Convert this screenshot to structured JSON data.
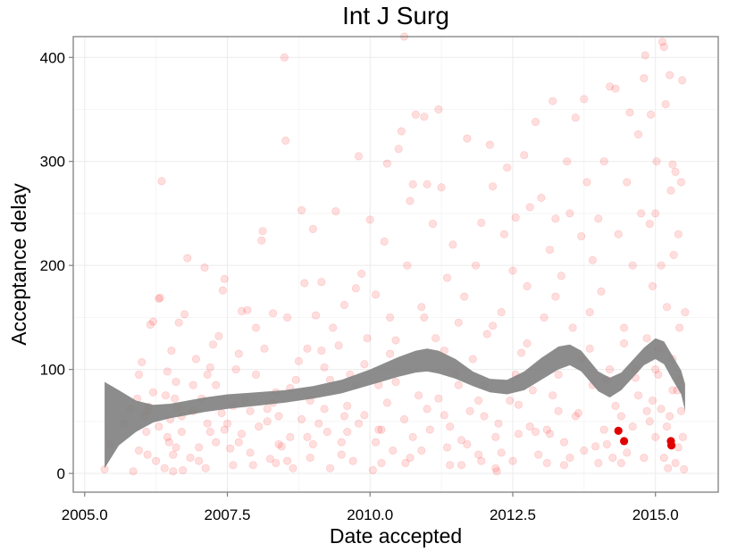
{
  "chart_data": {
    "type": "scatter",
    "title": "Int J Surg",
    "xlabel": "Date accepted",
    "ylabel": "Acceptance delay",
    "xlim": [
      2004.8,
      2016.1
    ],
    "ylim": [
      -18,
      420
    ],
    "x_ticks": [
      2005.0,
      2007.5,
      2010.0,
      2012.5,
      2015.0
    ],
    "x_tick_labels": [
      "2005.0",
      "2007.5",
      "2010.0",
      "2012.5",
      "2015.0"
    ],
    "y_ticks": [
      0,
      100,
      200,
      300,
      400
    ],
    "y_tick_labels": [
      "0",
      "100",
      "200",
      "300",
      "400"
    ],
    "grid": true,
    "colors": {
      "points": "#ff0000",
      "highlight": "#e00000",
      "smooth_band": "#808080",
      "panel_border": "#7f7f7f",
      "grid": "#ebebeb"
    },
    "point_alpha": 0.13,
    "highlight_points": [
      {
        "x": 2014.35,
        "y": 41
      },
      {
        "x": 2014.45,
        "y": 31
      },
      {
        "x": 2015.27,
        "y": 31
      },
      {
        "x": 2015.28,
        "y": 27
      }
    ],
    "smooth_band": {
      "x": [
        2005.35,
        2005.6,
        2005.9,
        2006.2,
        2006.5,
        2006.8,
        2007.1,
        2007.5,
        2008.0,
        2008.5,
        2009.0,
        2009.5,
        2010.0,
        2010.5,
        2010.8,
        2011.0,
        2011.2,
        2011.5,
        2011.8,
        2012.1,
        2012.4,
        2012.7,
        2013.0,
        2013.3,
        2013.5,
        2013.7,
        2014.0,
        2014.2,
        2014.4,
        2014.6,
        2014.8,
        2015.0,
        2015.15,
        2015.3,
        2015.45,
        2015.52
      ],
      "upper": [
        88,
        80,
        70,
        66,
        67,
        70,
        73,
        76,
        78,
        80,
        84,
        90,
        100,
        112,
        118,
        120,
        118,
        110,
        98,
        91,
        90,
        98,
        111,
        122,
        124,
        118,
        98,
        92,
        97,
        109,
        121,
        130,
        127,
        113,
        99,
        86
      ],
      "lower": [
        5,
        27,
        40,
        49,
        53,
        56,
        59,
        62,
        65,
        68,
        72,
        77,
        85,
        93,
        97,
        98,
        96,
        91,
        84,
        78,
        76,
        80,
        90,
        100,
        104,
        98,
        79,
        73,
        80,
        92,
        104,
        110,
        105,
        90,
        76,
        60
      ]
    },
    "points": [
      [
        2005.35,
        4
      ],
      [
        2005.45,
        28
      ],
      [
        2005.7,
        48
      ],
      [
        2005.8,
        62
      ],
      [
        2005.85,
        2
      ],
      [
        2005.92,
        72
      ],
      [
        2005.95,
        95
      ],
      [
        2006.0,
        107
      ],
      [
        2006.05,
        55
      ],
      [
        2006.08,
        40
      ],
      [
        2006.1,
        18
      ],
      [
        2006.12,
        64
      ],
      [
        2006.15,
        143
      ],
      [
        2006.2,
        146
      ],
      [
        2006.25,
        12
      ],
      [
        2006.3,
        168
      ],
      [
        2006.32,
        169
      ],
      [
        2006.35,
        281
      ],
      [
        2006.4,
        5
      ],
      [
        2006.42,
        75
      ],
      [
        2006.45,
        98
      ],
      [
        2006.48,
        30
      ],
      [
        2006.5,
        52
      ],
      [
        2006.52,
        118
      ],
      [
        2006.55,
        2
      ],
      [
        2006.58,
        72
      ],
      [
        2006.6,
        88
      ],
      [
        2006.62,
        63
      ],
      [
        2006.65,
        145
      ],
      [
        2006.7,
        40
      ],
      [
        2006.72,
        3
      ],
      [
        2006.75,
        153
      ],
      [
        2006.8,
        207
      ],
      [
        2006.85,
        15
      ],
      [
        2006.9,
        60
      ],
      [
        2006.95,
        110
      ],
      [
        2007.0,
        25
      ],
      [
        2007.05,
        72
      ],
      [
        2007.1,
        198
      ],
      [
        2007.12,
        5
      ],
      [
        2007.15,
        95
      ],
      [
        2007.2,
        40
      ],
      [
        2007.25,
        124
      ],
      [
        2007.3,
        85
      ],
      [
        2007.35,
        132
      ],
      [
        2007.4,
        58
      ],
      [
        2007.42,
        176
      ],
      [
        2007.45,
        187
      ],
      [
        2007.5,
        48
      ],
      [
        2007.55,
        24
      ],
      [
        2007.6,
        8
      ],
      [
        2007.65,
        100
      ],
      [
        2007.7,
        115
      ],
      [
        2007.75,
        156
      ],
      [
        2007.8,
        70
      ],
      [
        2007.85,
        157
      ],
      [
        2007.9,
        60
      ],
      [
        2007.95,
        8
      ],
      [
        2008.0,
        140
      ],
      [
        2008.05,
        45
      ],
      [
        2008.1,
        224
      ],
      [
        2008.12,
        233
      ],
      [
        2008.15,
        120
      ],
      [
        2008.2,
        62
      ],
      [
        2008.25,
        14
      ],
      [
        2008.3,
        154
      ],
      [
        2008.35,
        10
      ],
      [
        2008.4,
        55
      ],
      [
        2008.45,
        26
      ],
      [
        2008.5,
        400
      ],
      [
        2008.52,
        320
      ],
      [
        2008.55,
        150
      ],
      [
        2008.6,
        35
      ],
      [
        2008.65,
        5
      ],
      [
        2008.7,
        90
      ],
      [
        2008.75,
        108
      ],
      [
        2008.8,
        253
      ],
      [
        2008.85,
        183
      ],
      [
        2008.9,
        120
      ],
      [
        2008.95,
        70
      ],
      [
        2009.0,
        235
      ],
      [
        2009.05,
        152
      ],
      [
        2009.1,
        48
      ],
      [
        2009.15,
        184
      ],
      [
        2009.2,
        102
      ],
      [
        2009.25,
        40
      ],
      [
        2009.3,
        5
      ],
      [
        2009.35,
        140
      ],
      [
        2009.4,
        252
      ],
      [
        2009.45,
        123
      ],
      [
        2009.5,
        30
      ],
      [
        2009.55,
        162
      ],
      [
        2009.6,
        65
      ],
      [
        2009.65,
        95
      ],
      [
        2009.7,
        12
      ],
      [
        2009.75,
        178
      ],
      [
        2009.8,
        305
      ],
      [
        2009.85,
        192
      ],
      [
        2009.9,
        56
      ],
      [
        2009.95,
        130
      ],
      [
        2010.0,
        244
      ],
      [
        2010.05,
        3
      ],
      [
        2010.1,
        172
      ],
      [
        2010.15,
        85
      ],
      [
        2010.2,
        42
      ],
      [
        2010.25,
        223
      ],
      [
        2010.3,
        298
      ],
      [
        2010.35,
        150
      ],
      [
        2010.4,
        22
      ],
      [
        2010.45,
        128
      ],
      [
        2010.5,
        312
      ],
      [
        2010.55,
        329
      ],
      [
        2010.6,
        420
      ],
      [
        2010.62,
        10
      ],
      [
        2010.65,
        200
      ],
      [
        2010.7,
        262
      ],
      [
        2010.75,
        278
      ],
      [
        2010.8,
        345
      ],
      [
        2010.85,
        75
      ],
      [
        2010.9,
        160
      ],
      [
        2010.95,
        343
      ],
      [
        2011.0,
        278
      ],
      [
        2011.05,
        42
      ],
      [
        2011.1,
        240
      ],
      [
        2011.15,
        130
      ],
      [
        2011.2,
        350
      ],
      [
        2011.25,
        275
      ],
      [
        2011.3,
        56
      ],
      [
        2011.35,
        188
      ],
      [
        2011.4,
        8
      ],
      [
        2011.45,
        220
      ],
      [
        2011.5,
        96
      ],
      [
        2011.55,
        145
      ],
      [
        2011.6,
        32
      ],
      [
        2011.65,
        170
      ],
      [
        2011.7,
        322
      ],
      [
        2011.75,
        60
      ],
      [
        2011.8,
        110
      ],
      [
        2011.85,
        200
      ],
      [
        2011.9,
        18
      ],
      [
        2011.95,
        241
      ],
      [
        2012.0,
        85
      ],
      [
        2012.05,
        134
      ],
      [
        2012.1,
        316
      ],
      [
        2012.15,
        276
      ],
      [
        2012.2,
        5
      ],
      [
        2012.22,
        2
      ],
      [
        2012.25,
        48
      ],
      [
        2012.3,
        155
      ],
      [
        2012.35,
        230
      ],
      [
        2012.4,
        294
      ],
      [
        2012.45,
        70
      ],
      [
        2012.5,
        195
      ],
      [
        2012.55,
        246
      ],
      [
        2012.6,
        38
      ],
      [
        2012.65,
        116
      ],
      [
        2012.7,
        306
      ],
      [
        2012.75,
        180
      ],
      [
        2012.8,
        256
      ],
      [
        2012.85,
        80
      ],
      [
        2012.9,
        338
      ],
      [
        2012.95,
        18
      ],
      [
        2013.0,
        265
      ],
      [
        2013.05,
        150
      ],
      [
        2013.1,
        42
      ],
      [
        2013.15,
        215
      ],
      [
        2013.2,
        358
      ],
      [
        2013.25,
        245
      ],
      [
        2013.3,
        95
      ],
      [
        2013.35,
        190
      ],
      [
        2013.4,
        8
      ],
      [
        2013.45,
        300
      ],
      [
        2013.5,
        250
      ],
      [
        2013.55,
        140
      ],
      [
        2013.6,
        342
      ],
      [
        2013.65,
        58
      ],
      [
        2013.7,
        228
      ],
      [
        2013.75,
        360
      ],
      [
        2013.8,
        280
      ],
      [
        2013.85,
        120
      ],
      [
        2013.9,
        205
      ],
      [
        2013.95,
        26
      ],
      [
        2014.0,
        245
      ],
      [
        2014.05,
        175
      ],
      [
        2014.1,
        300
      ],
      [
        2014.15,
        90
      ],
      [
        2014.2,
        372
      ],
      [
        2014.25,
        15
      ],
      [
        2014.3,
        370
      ],
      [
        2014.35,
        230
      ],
      [
        2014.4,
        55
      ],
      [
        2014.45,
        140
      ],
      [
        2014.5,
        280
      ],
      [
        2014.55,
        347
      ],
      [
        2014.6,
        200
      ],
      [
        2014.65,
        100
      ],
      [
        2014.7,
        326
      ],
      [
        2014.75,
        250
      ],
      [
        2014.8,
        380
      ],
      [
        2014.82,
        402
      ],
      [
        2014.85,
        60
      ],
      [
        2014.9,
        240
      ],
      [
        2014.92,
        345
      ],
      [
        2014.95,
        180
      ],
      [
        2015.0,
        250
      ],
      [
        2015.02,
        300
      ],
      [
        2015.05,
        120
      ],
      [
        2015.1,
        200
      ],
      [
        2015.12,
        415
      ],
      [
        2015.15,
        410
      ],
      [
        2015.18,
        355
      ],
      [
        2015.2,
        160
      ],
      [
        2015.22,
        5
      ],
      [
        2015.25,
        383
      ],
      [
        2015.27,
        272
      ],
      [
        2015.3,
        297
      ],
      [
        2015.32,
        210
      ],
      [
        2015.35,
        290
      ],
      [
        2015.38,
        80
      ],
      [
        2015.4,
        230
      ],
      [
        2015.42,
        140
      ],
      [
        2015.45,
        280
      ],
      [
        2015.47,
        378
      ],
      [
        2015.5,
        4
      ],
      [
        2015.52,
        155
      ],
      [
        2006.1,
        60
      ],
      [
        2006.3,
        45
      ],
      [
        2006.6,
        25
      ],
      [
        2006.9,
        85
      ],
      [
        2007.3,
        30
      ],
      [
        2007.6,
        65
      ],
      [
        2007.9,
        20
      ],
      [
        2008.2,
        50
      ],
      [
        2008.4,
        28
      ],
      [
        2008.6,
        82
      ],
      [
        2008.9,
        35
      ],
      [
        2009.2,
        62
      ],
      [
        2009.5,
        18
      ],
      [
        2009.8,
        48
      ],
      [
        2010.1,
        30
      ],
      [
        2010.3,
        68
      ],
      [
        2010.6,
        52
      ],
      [
        2010.9,
        22
      ],
      [
        2011.2,
        72
      ],
      [
        2011.4,
        45
      ],
      [
        2011.7,
        28
      ],
      [
        2012.0,
        55
      ],
      [
        2012.3,
        20
      ],
      [
        2012.6,
        66
      ],
      [
        2012.9,
        40
      ],
      [
        2013.2,
        75
      ],
      [
        2013.4,
        30
      ],
      [
        2013.6,
        55
      ],
      [
        2013.9,
        85
      ],
      [
        2014.1,
        42
      ],
      [
        2014.3,
        65
      ],
      [
        2014.5,
        20
      ],
      [
        2014.7,
        75
      ],
      [
        2014.9,
        50
      ],
      [
        2015.0,
        35
      ],
      [
        2015.1,
        62
      ],
      [
        2015.2,
        45
      ],
      [
        2015.3,
        80
      ],
      [
        2015.4,
        25
      ],
      [
        2015.45,
        60
      ],
      [
        2006.2,
        78
      ],
      [
        2006.45,
        35
      ],
      [
        2006.7,
        55
      ],
      [
        2007.0,
        12
      ],
      [
        2007.2,
        102
      ],
      [
        2007.45,
        42
      ],
      [
        2007.7,
        30
      ],
      [
        2008.0,
        95
      ],
      [
        2008.3,
        68
      ],
      [
        2008.55,
        12
      ],
      [
        2008.8,
        52
      ],
      [
        2009.0,
        28
      ],
      [
        2009.3,
        90
      ],
      [
        2009.6,
        40
      ],
      [
        2009.9,
        105
      ],
      [
        2010.2,
        10
      ],
      [
        2010.45,
        88
      ],
      [
        2010.7,
        15
      ],
      [
        2011.0,
        62
      ],
      [
        2011.3,
        118
      ],
      [
        2011.6,
        8
      ],
      [
        2011.9,
        70
      ],
      [
        2012.2,
        35
      ],
      [
        2012.5,
        12
      ],
      [
        2012.8,
        45
      ],
      [
        2013.1,
        10
      ],
      [
        2013.3,
        60
      ],
      [
        2013.5,
        15
      ],
      [
        2013.7,
        110
      ],
      [
        2014.0,
        10
      ],
      [
        2014.2,
        100
      ],
      [
        2014.4,
        10
      ],
      [
        2014.6,
        45
      ],
      [
        2014.8,
        15
      ],
      [
        2014.95,
        70
      ],
      [
        2015.05,
        95
      ],
      [
        2015.15,
        15
      ],
      [
        2015.25,
        55
      ],
      [
        2015.35,
        10
      ],
      [
        2015.48,
        35
      ],
      [
        2005.95,
        22
      ],
      [
        2006.55,
        18
      ],
      [
        2007.15,
        48
      ],
      [
        2007.75,
        38
      ],
      [
        2008.35,
        78
      ],
      [
        2008.95,
        15
      ],
      [
        2009.55,
        55
      ],
      [
        2010.15,
        42
      ],
      [
        2010.75,
        35
      ],
      [
        2011.35,
        25
      ],
      [
        2011.95,
        12
      ],
      [
        2012.55,
        95
      ],
      [
        2013.15,
        38
      ],
      [
        2013.75,
        22
      ],
      [
        2014.15,
        28
      ],
      [
        2014.65,
        92
      ],
      [
        2015.0,
        100
      ],
      [
        2015.3,
        110
      ],
      [
        2015.42,
        90
      ],
      [
        2014.85,
        130
      ],
      [
        2014.45,
        125
      ],
      [
        2013.85,
        155
      ],
      [
        2013.25,
        170
      ],
      [
        2012.75,
        125
      ],
      [
        2012.15,
        142
      ],
      [
        2011.55,
        85
      ],
      [
        2010.95,
        150
      ],
      [
        2010.35,
        115
      ],
      [
        2009.75,
        85
      ],
      [
        2009.15,
        118
      ]
    ]
  }
}
